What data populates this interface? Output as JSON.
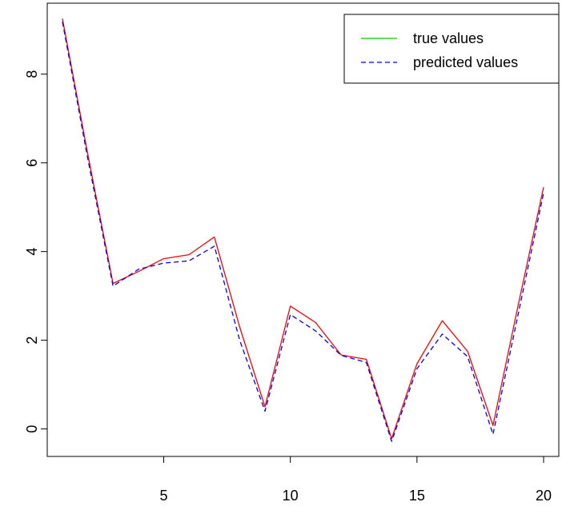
{
  "chart_data": {
    "type": "line",
    "title": "",
    "xlabel": "",
    "ylabel": "",
    "xlim": [
      0.4,
      20.6
    ],
    "ylim": [
      -0.62,
      9.6
    ],
    "x_ticks": [
      5,
      10,
      15,
      20
    ],
    "x_tick_labels": [
      "5",
      "10",
      "15",
      "20"
    ],
    "y_ticks": [
      0,
      2,
      4,
      6,
      8
    ],
    "y_tick_labels": [
      "0",
      "2",
      "4",
      "6",
      "8"
    ],
    "grid": false,
    "legend": "top-right",
    "x": [
      1,
      2,
      3,
      4,
      5,
      6,
      7,
      8,
      9,
      10,
      11,
      12,
      13,
      14,
      15,
      16,
      17,
      18,
      19,
      20
    ],
    "series": [
      {
        "name": "true values",
        "legend_color": "#00cd00",
        "draw_color": "#ff0000",
        "dash": "solid",
        "values": [
          9.25,
          6.2,
          3.28,
          3.55,
          3.84,
          3.93,
          4.33,
          2.3,
          0.5,
          2.77,
          2.4,
          1.67,
          1.57,
          -0.22,
          1.47,
          2.44,
          1.75,
          0.08,
          2.8,
          5.45
        ]
      },
      {
        "name": "predicted values",
        "legend_color": "#0000ff",
        "draw_color": "#0000ff",
        "dash": "dashed",
        "values": [
          9.18,
          6.1,
          3.22,
          3.6,
          3.74,
          3.79,
          4.12,
          2.0,
          0.4,
          2.58,
          2.21,
          1.66,
          1.5,
          -0.28,
          1.36,
          2.14,
          1.63,
          -0.12,
          2.6,
          5.32
        ]
      }
    ]
  }
}
